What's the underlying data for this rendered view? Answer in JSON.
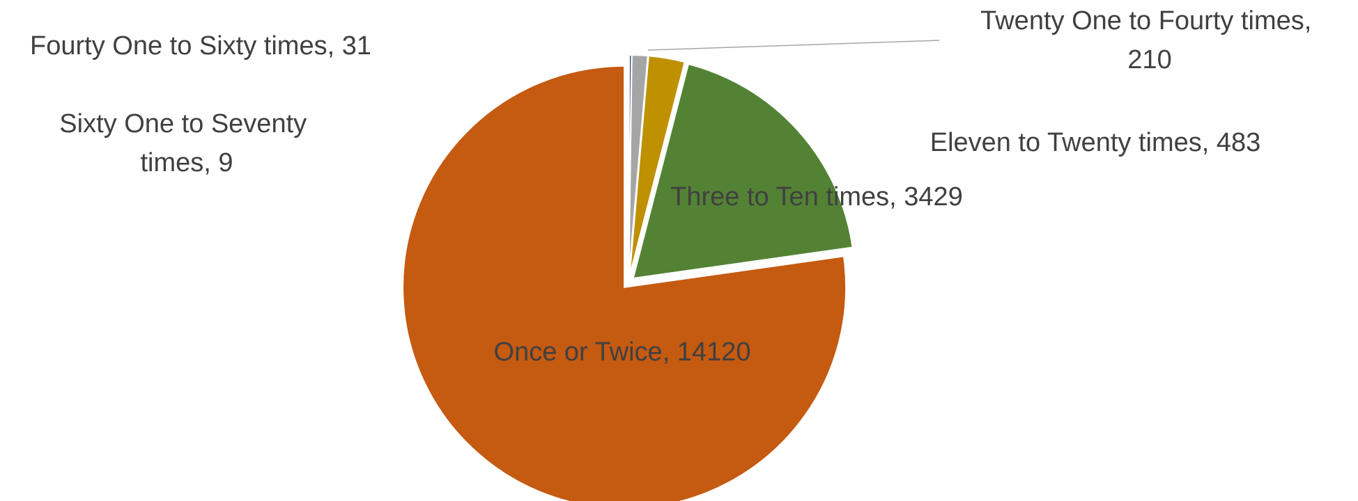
{
  "chart_data": {
    "type": "pie",
    "title": "",
    "legend": "none",
    "slices": [
      {
        "label": "Once or Twice",
        "value": 14120,
        "color": "#C55A11",
        "data_label": "Once or Twice, 14120"
      },
      {
        "label": "Three to Ten times",
        "value": 3429,
        "color": "#548235",
        "data_label": "Three to Ten times, 3429"
      },
      {
        "label": "Eleven to Twenty times",
        "value": 483,
        "color": "#BF9000",
        "data_label": "Eleven to Twenty times, 483"
      },
      {
        "label": "Twenty One to Fourty times",
        "value": 210,
        "color": "#A5A5A5",
        "data_label_lines": [
          "Twenty One to Fourty times,",
          "210"
        ]
      },
      {
        "label": "Fourty One to Sixty times",
        "value": 31,
        "color": "#264478",
        "data_label": "Fourty One to Sixty times, 31"
      },
      {
        "label": "Sixty One to Seventy times",
        "value": 9,
        "color": "#2E75B6",
        "data_label_lines": [
          "Sixty One to Seventy",
          "times, 9"
        ]
      }
    ]
  }
}
